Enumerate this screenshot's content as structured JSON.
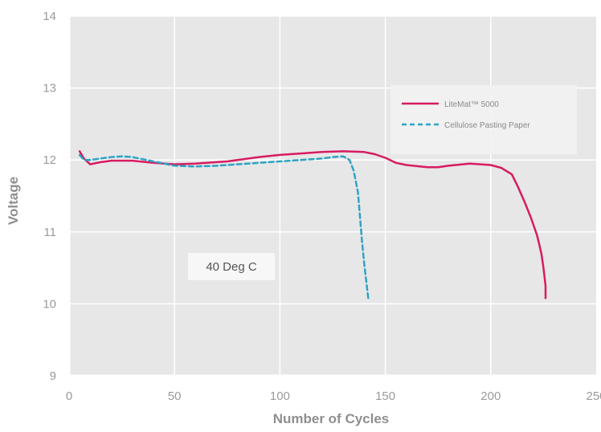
{
  "chart_data": {
    "type": "line",
    "xlabel": "Number of Cycles",
    "ylabel": "Voltage",
    "xlim": [
      0,
      250
    ],
    "ylim": [
      9,
      14
    ],
    "x_ticks": [
      "0",
      "50",
      "100",
      "150",
      "200",
      "250"
    ],
    "y_ticks": [
      "9",
      "10",
      "11",
      "12",
      "13",
      "14"
    ],
    "grid": true,
    "legend_position": "top-right",
    "annotation": "40 Deg C",
    "series": [
      {
        "name": "LiteMat™ 5000",
        "color": "#d81b60",
        "style": "solid",
        "x": [
          5,
          7,
          10,
          15,
          20,
          30,
          40,
          50,
          60,
          75,
          90,
          100,
          110,
          120,
          130,
          140,
          145,
          150,
          155,
          160,
          170,
          175,
          180,
          190,
          200,
          205,
          210,
          213,
          216,
          219,
          222,
          224,
          225,
          226,
          226
        ],
        "y": [
          12.12,
          12.02,
          11.94,
          11.97,
          11.99,
          11.99,
          11.96,
          11.94,
          11.95,
          11.98,
          12.04,
          12.07,
          12.09,
          12.11,
          12.12,
          12.11,
          12.08,
          12.03,
          11.96,
          11.93,
          11.9,
          11.9,
          11.92,
          11.95,
          11.93,
          11.89,
          11.8,
          11.62,
          11.42,
          11.2,
          10.95,
          10.7,
          10.5,
          10.25,
          10.08
        ]
      },
      {
        "name": "Cellulose Pasting Paper",
        "color": "#2ea3c2",
        "style": "dashed",
        "x": [
          5,
          7,
          10,
          15,
          20,
          25,
          30,
          40,
          50,
          60,
          70,
          80,
          90,
          100,
          110,
          120,
          125,
          130,
          133,
          135,
          137,
          138,
          139,
          140,
          141,
          142
        ],
        "y": [
          12.07,
          12.0,
          12.0,
          12.02,
          12.04,
          12.05,
          12.04,
          11.98,
          11.92,
          11.91,
          11.92,
          11.94,
          11.96,
          11.98,
          12.0,
          12.02,
          12.04,
          12.05,
          12.0,
          11.85,
          11.55,
          11.2,
          10.85,
          10.55,
          10.3,
          10.05
        ]
      }
    ]
  }
}
